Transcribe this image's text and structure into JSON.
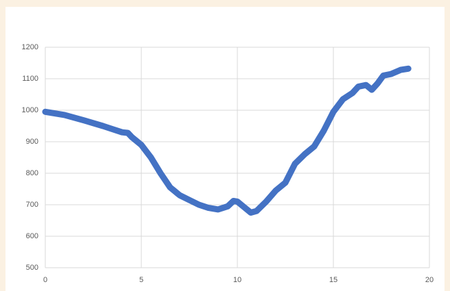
{
  "chart_data": {
    "type": "line",
    "x": [
      0,
      1,
      2,
      3,
      3.5,
      4,
      4.3,
      4.5,
      5,
      5.5,
      6,
      6.5,
      7,
      7.5,
      8,
      8.5,
      9,
      9.5,
      9.8,
      10,
      10.3,
      10.7,
      11,
      11.5,
      12,
      12.5,
      13,
      13.5,
      14,
      14.5,
      15,
      15.5,
      16,
      16.3,
      16.7,
      17,
      17.3,
      17.6,
      18,
      18.5,
      18.9
    ],
    "series": [
      {
        "color": "#4472c4",
        "values": [
          995,
          985,
          968,
          950,
          940,
          930,
          928,
          915,
          890,
          850,
          800,
          755,
          730,
          715,
          700,
          690,
          685,
          695,
          712,
          710,
          695,
          675,
          680,
          710,
          745,
          770,
          830,
          860,
          885,
          935,
          995,
          1035,
          1055,
          1075,
          1080,
          1065,
          1085,
          1110,
          1115,
          1128,
          1132
        ]
      }
    ],
    "xlim": [
      0,
      20
    ],
    "xticks": [
      0,
      5,
      10,
      15,
      20
    ],
    "ylim": [
      500,
      1200
    ],
    "yticks": [
      500,
      600,
      700,
      800,
      900,
      1000,
      1100,
      1200
    ],
    "grid": true
  }
}
